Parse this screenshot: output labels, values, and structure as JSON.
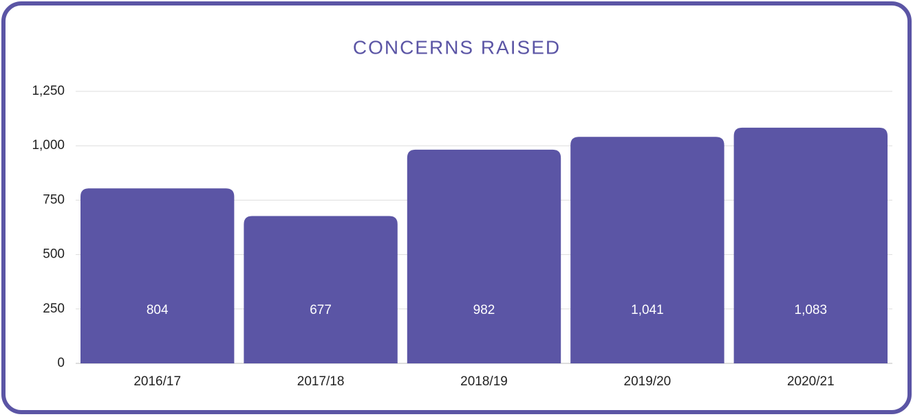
{
  "chart_data": {
    "type": "bar",
    "title": "CONCERNS RAISED",
    "categories": [
      "2016/17",
      "2017/18",
      "2018/19",
      "2019/20",
      "2020/21"
    ],
    "values": [
      804,
      677,
      982,
      1041,
      1083
    ],
    "value_labels": [
      "804",
      "677",
      "982",
      "1,041",
      "1,083"
    ],
    "color": "#5b55a5",
    "ylim": [
      0,
      1250
    ],
    "yticks": [
      0,
      250,
      500,
      750,
      {
        "value": 1000,
        "label": "1,000"
      },
      {
        "value": 1250,
        "label": "1,250"
      }
    ],
    "grid": true
  }
}
